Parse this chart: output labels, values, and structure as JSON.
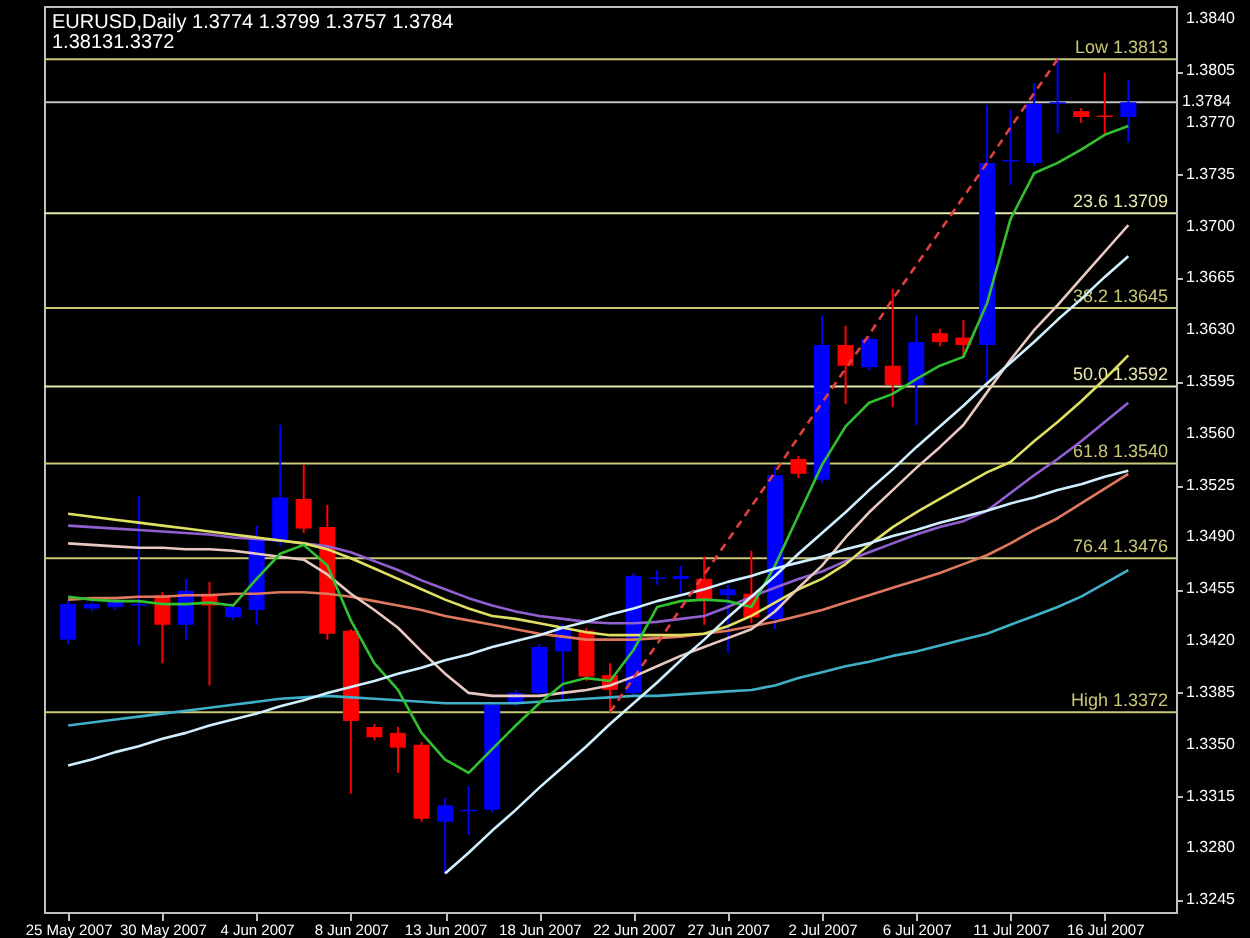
{
  "chart_data": {
    "type": "candlestick",
    "title": "EURUSD,Daily  1.3774 1.3799 1.3757 1.3784",
    "subtitle": "1.38131.3372",
    "categories": [
      "25 May 2007",
      null,
      null,
      null,
      "30 May 2007",
      null,
      null,
      null,
      "4 Jun 2007",
      null,
      null,
      null,
      "8 Jun 2007",
      null,
      null,
      null,
      "13 Jun 2007",
      null,
      null,
      null,
      "18 Jun 2007",
      null,
      null,
      null,
      "22 Jun 2007",
      null,
      null,
      null,
      "27 Jun 2007",
      null,
      null,
      null,
      "2 Jul 2007",
      null,
      null,
      null,
      "6 Jul 2007",
      null,
      null,
      null,
      "11 Jul 2007",
      null,
      null,
      null,
      "16 Jul 2007",
      null
    ],
    "ohlc": [
      [
        1.3421,
        1.3448,
        1.3418,
        1.3445
      ],
      [
        1.3442,
        1.3447,
        1.344,
        1.3445
      ],
      [
        1.3443,
        1.3449,
        1.3441,
        1.3447
      ],
      [
        1.3444,
        1.3518,
        1.3417,
        1.3445
      ],
      [
        1.3451,
        1.3453,
        1.3405,
        1.3431
      ],
      [
        1.3431,
        1.3462,
        1.3421,
        1.3454
      ],
      [
        1.3452,
        1.346,
        1.339,
        1.3444
      ],
      [
        1.3436,
        1.3445,
        1.3434,
        1.3443
      ],
      [
        1.3441,
        1.3498,
        1.3431,
        1.349
      ],
      [
        1.3487,
        1.3566,
        1.3484,
        1.3517
      ],
      [
        1.3516,
        1.3539,
        1.3493,
        1.3496
      ],
      [
        1.3497,
        1.3512,
        1.3421,
        1.3425
      ],
      [
        1.3427,
        1.3428,
        1.3317,
        1.3366
      ],
      [
        1.3362,
        1.3364,
        1.3353,
        1.3355
      ],
      [
        1.3358,
        1.3362,
        1.3331,
        1.3348
      ],
      [
        1.335,
        1.3352,
        1.3298,
        1.33
      ],
      [
        1.3298,
        1.3314,
        1.3263,
        1.3309
      ],
      [
        1.3305,
        1.3322,
        1.3289,
        1.3306
      ],
      [
        1.3306,
        1.3379,
        1.3304,
        1.3377
      ],
      [
        1.3378,
        1.3387,
        1.3376,
        1.3385
      ],
      [
        1.3385,
        1.3418,
        1.3383,
        1.3416
      ],
      [
        1.3413,
        1.3432,
        1.3381,
        1.3428
      ],
      [
        1.3427,
        1.3429,
        1.3393,
        1.3396
      ],
      [
        1.3397,
        1.3405,
        1.3372,
        1.3387
      ],
      [
        1.3385,
        1.3466,
        1.3383,
        1.3464
      ],
      [
        1.3462,
        1.3468,
        1.3458,
        1.3463
      ],
      [
        1.3462,
        1.3471,
        1.3452,
        1.3464
      ],
      [
        1.3462,
        1.3477,
        1.3431,
        1.3448
      ],
      [
        1.3451,
        1.3458,
        1.3412,
        1.3455
      ],
      [
        1.3452,
        1.3481,
        1.3432,
        1.3436
      ],
      [
        1.3435,
        1.3538,
        1.3428,
        1.3532
      ],
      [
        1.3543,
        1.3545,
        1.353,
        1.3533
      ],
      [
        1.3529,
        1.364,
        1.3527,
        1.362
      ],
      [
        1.362,
        1.3633,
        1.358,
        1.3606
      ],
      [
        1.3605,
        1.3626,
        1.3603,
        1.3624
      ],
      [
        1.3606,
        1.3658,
        1.3578,
        1.3593
      ],
      [
        1.3593,
        1.364,
        1.3566,
        1.3622
      ],
      [
        1.3628,
        1.3631,
        1.3619,
        1.3622
      ],
      [
        1.3625,
        1.3637,
        1.3613,
        1.362
      ],
      [
        1.362,
        1.3782,
        1.3593,
        1.3743
      ],
      [
        1.3744,
        1.3779,
        1.3728,
        1.3745
      ],
      [
        1.3743,
        1.3797,
        1.3741,
        1.3783
      ],
      [
        1.3783,
        1.3813,
        1.3763,
        1.3784
      ],
      [
        1.3778,
        1.378,
        1.377,
        1.3774
      ],
      [
        1.3775,
        1.3804,
        1.3762,
        1.3774
      ],
      [
        1.3774,
        1.3799,
        1.3757,
        1.3784
      ]
    ],
    "colors": [
      "#0000ff",
      "#0000ff",
      "#0000ff",
      "#0000ff",
      "#ff0000",
      "#0000ff",
      "#ff0000",
      "#0000ff",
      "#0000ff",
      "#0000ff",
      "#ff0000",
      "#ff0000",
      "#ff0000",
      "#ff0000",
      "#ff0000",
      "#ff0000",
      "#0000ff",
      "#0000ff",
      "#0000ff",
      "#0000ff",
      "#0000ff",
      "#0000ff",
      "#ff0000",
      "#ff0000",
      "#0000ff",
      "#0000ff",
      "#0000ff",
      "#ff0000",
      "#0000ff",
      "#ff0000",
      "#0000ff",
      "#ff0000",
      "#0000ff",
      "#ff0000",
      "#0000ff",
      "#ff0000",
      "#0000ff",
      "#ff0000",
      "#ff0000",
      "#0000ff",
      "#0000ff",
      "#0000ff",
      "#0000ff",
      "#ff0000",
      "#ff0000",
      "#0000ff"
    ],
    "series": [
      {
        "type": "line",
        "color": "#40b0c8",
        "values": [
          1.3363,
          1.3365,
          1.3367,
          1.3369,
          1.3371,
          1.3373,
          1.3375,
          1.3377,
          1.3379,
          1.3381,
          1.3382,
          1.3383,
          1.3382,
          1.3381,
          1.338,
          1.3379,
          1.3378,
          1.3378,
          1.3378,
          1.3378,
          1.3379,
          1.338,
          1.3381,
          1.3382,
          1.3383,
          1.3383,
          1.3384,
          1.3385,
          1.3386,
          1.3387,
          1.339,
          1.3395,
          1.3399,
          1.3403,
          1.3406,
          1.341,
          1.3413,
          1.3417,
          1.3421,
          1.3425,
          1.3431,
          1.3437,
          1.3443,
          1.345,
          1.3459,
          1.3468
        ]
      },
      {
        "type": "line",
        "color": "#e07860",
        "values": [
          1.3448,
          1.3449,
          1.3449,
          1.345,
          1.345,
          1.3451,
          1.3451,
          1.3452,
          1.3452,
          1.3453,
          1.3453,
          1.3452,
          1.345,
          1.3447,
          1.3444,
          1.3441,
          1.3437,
          1.3434,
          1.3431,
          1.3428,
          1.3425,
          1.3423,
          1.3421,
          1.3421,
          1.3421,
          1.3422,
          1.3423,
          1.3425,
          1.3427,
          1.343,
          1.3433,
          1.3437,
          1.3441,
          1.3446,
          1.3451,
          1.3456,
          1.3461,
          1.3466,
          1.3472,
          1.3478,
          1.3486,
          1.3495,
          1.3503,
          1.3513,
          1.3523,
          1.3533
        ]
      },
      {
        "type": "line",
        "color": "#9060d0",
        "values": [
          1.3498,
          1.3497,
          1.3496,
          1.3495,
          1.3494,
          1.3493,
          1.3492,
          1.349,
          1.3489,
          1.3488,
          1.3486,
          1.3484,
          1.348,
          1.3474,
          1.3468,
          1.3461,
          1.3455,
          1.3449,
          1.3444,
          1.344,
          1.3437,
          1.3435,
          1.3433,
          1.3432,
          1.3432,
          1.3433,
          1.3435,
          1.3437,
          1.3443,
          1.345,
          1.3456,
          1.3462,
          1.3467,
          1.3474,
          1.348,
          1.3486,
          1.3492,
          1.3497,
          1.3501,
          1.3508,
          1.352,
          1.3532,
          1.3543,
          1.3555,
          1.3568,
          1.3581
        ]
      },
      {
        "type": "line",
        "color": "#e0e060",
        "values": [
          1.3506,
          1.3504,
          1.3502,
          1.35,
          1.3498,
          1.3496,
          1.3494,
          1.3492,
          1.349,
          1.3488,
          1.3486,
          1.3482,
          1.3476,
          1.3469,
          1.3462,
          1.3455,
          1.3448,
          1.3442,
          1.3437,
          1.3435,
          1.3432,
          1.3429,
          1.3426,
          1.3424,
          1.3424,
          1.3424,
          1.3424,
          1.3425,
          1.343,
          1.3437,
          1.3446,
          1.3455,
          1.3462,
          1.3472,
          1.3485,
          1.3497,
          1.3507,
          1.3516,
          1.3525,
          1.3534,
          1.3541,
          1.3555,
          1.3568,
          1.3582,
          1.3597,
          1.3613
        ]
      },
      {
        "type": "line",
        "color": "#e8c8c0",
        "values": [
          1.3486,
          1.3485,
          1.3484,
          1.3483,
          1.3483,
          1.3482,
          1.3482,
          1.3481,
          1.3479,
          1.3477,
          1.3475,
          1.3465,
          1.3452,
          1.3441,
          1.3429,
          1.3413,
          1.3398,
          1.3385,
          1.3383,
          1.3383,
          1.3383,
          1.3385,
          1.3387,
          1.339,
          1.3396,
          1.3403,
          1.341,
          1.3416,
          1.3422,
          1.3428,
          1.344,
          1.3456,
          1.3471,
          1.349,
          1.3507,
          1.3522,
          1.3537,
          1.3551,
          1.3566,
          1.3588,
          1.361,
          1.363,
          1.3647,
          1.3665,
          1.3683,
          1.3701
        ]
      },
      {
        "type": "line",
        "color": "#30c030",
        "values": [
          1.345,
          1.3448,
          1.3447,
          1.3447,
          1.3445,
          1.3445,
          1.3446,
          1.3444,
          1.3462,
          1.3479,
          1.3485,
          1.3471,
          1.3434,
          1.3405,
          1.3387,
          1.3358,
          1.334,
          1.3331,
          1.3347,
          1.3363,
          1.3378,
          1.3391,
          1.3395,
          1.3393,
          1.3414,
          1.3443,
          1.3447,
          1.3448,
          1.3447,
          1.3443,
          1.3471,
          1.3505,
          1.3539,
          1.3565,
          1.3581,
          1.3587,
          1.3597,
          1.3606,
          1.3612,
          1.3648,
          1.3705,
          1.3736,
          1.3743,
          1.3752,
          1.3762,
          1.3768
        ]
      },
      {
        "type": "line",
        "color": "#d0f0ff",
        "values": [
          1.3336,
          1.334,
          1.3345,
          1.3349,
          1.3354,
          1.3358,
          1.3363,
          1.3367,
          1.3371,
          1.3376,
          1.338,
          1.3385,
          1.3389,
          1.3393,
          1.3398,
          1.3402,
          1.3407,
          1.3411,
          1.3416,
          1.342,
          1.3424,
          1.3429,
          1.3433,
          1.3438,
          1.3442,
          1.3447,
          1.3451,
          1.3455,
          1.346,
          1.3464,
          1.3469,
          1.3473,
          1.3477,
          1.3482,
          1.3486,
          1.3491,
          1.3495,
          1.35,
          1.3504,
          1.3508,
          1.3513,
          1.3517,
          1.3522,
          1.3526,
          1.3531,
          1.3535
        ]
      },
      {
        "type": "line",
        "color": "#d0f0ff",
        "values": [
          null,
          null,
          null,
          null,
          null,
          null,
          null,
          null,
          null,
          null,
          null,
          null,
          null,
          null,
          null,
          null,
          1.3263,
          1.3277,
          1.3292,
          1.3306,
          1.3321,
          1.3335,
          1.3349,
          1.3364,
          1.3378,
          1.3392,
          1.3407,
          1.3421,
          1.3436,
          1.345,
          1.3464,
          1.3479,
          1.3493,
          1.3507,
          1.3522,
          1.3536,
          1.3551,
          1.3565,
          1.3579,
          1.3594,
          1.3608,
          1.3622,
          1.3637,
          1.3651,
          1.3666,
          1.368
        ]
      },
      {
        "type": "line",
        "color": "#e04040",
        "line_style": "dashed",
        "values": [
          null,
          null,
          null,
          null,
          null,
          null,
          null,
          null,
          null,
          null,
          null,
          null,
          null,
          null,
          null,
          null,
          null,
          null,
          null,
          null,
          null,
          null,
          null,
          1.3372,
          1.3395,
          1.3418,
          1.3442,
          1.3465,
          1.3488,
          1.3511,
          1.3534,
          1.3558,
          1.3581,
          1.3604,
          1.3627,
          1.3651,
          1.3674,
          1.3697,
          1.372,
          1.3743,
          1.3767,
          1.379,
          1.3813,
          null,
          null,
          null
        ]
      }
    ],
    "ylim": [
      1.3237,
      1.3849
    ],
    "yticks": [
      1.3245,
      {
        "value": 1.328,
        "label": "1.3280"
      },
      1.3315,
      {
        "value": 1.335,
        "label": "1.3350"
      },
      1.3385,
      {
        "value": 1.342,
        "label": "1.3420"
      },
      1.3455,
      {
        "value": 1.349,
        "label": "1.3490"
      },
      1.3525,
      {
        "value": 1.356,
        "label": "1.3560"
      },
      1.3595,
      {
        "value": 1.363,
        "label": "1.3630"
      },
      1.3665,
      {
        "value": 1.37,
        "label": "1.3700"
      },
      1.3735,
      {
        "value": 1.377,
        "label": "1.3770"
      },
      1.3805,
      {
        "value": 1.384,
        "label": "1.3840"
      }
    ],
    "ref_lines": [
      {
        "axis": "y",
        "value": 1.3813,
        "label": "Low 1.3813",
        "color": "#c8c878"
      },
      {
        "axis": "y",
        "value": 1.3709,
        "label": "23.6 1.3709",
        "color": "#e8e8b0"
      },
      {
        "axis": "y",
        "value": 1.3645,
        "label": "38.2 1.3645",
        "color": "#c8c878"
      },
      {
        "axis": "y",
        "value": 1.3592,
        "label": "50.0 1.3592",
        "color": "#e8e8b0"
      },
      {
        "axis": "y",
        "value": 1.354,
        "label": "61.8 1.3540",
        "color": "#c8c878"
      },
      {
        "axis": "y",
        "value": 1.3476,
        "label": "76.4 1.3476",
        "color": "#c8c878"
      },
      {
        "axis": "y",
        "value": 1.3372,
        "label": "High 1.3372",
        "color": "#c8c878"
      },
      {
        "axis": "y",
        "value": 1.3784,
        "label": "1.3784",
        "color": "#c0c0c0"
      }
    ]
  }
}
